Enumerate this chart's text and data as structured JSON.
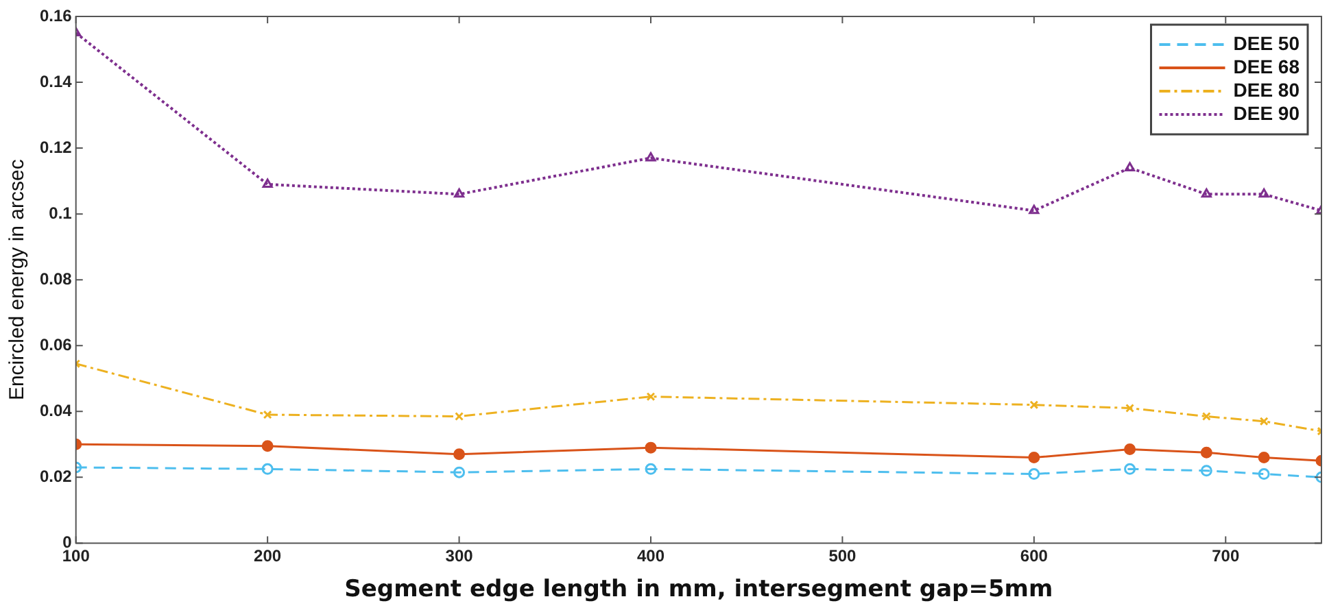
{
  "chart_data": {
    "type": "line",
    "xlabel": "Segment edge length in mm, intersegment gap=5mm",
    "ylabel": "Encircled energy in arcsec",
    "x": [
      100,
      200,
      300,
      400,
      600,
      650,
      690,
      720,
      750
    ],
    "xlim": [
      100,
      750
    ],
    "xticks": [
      100,
      200,
      300,
      400,
      500,
      600,
      700
    ],
    "ylim": [
      0,
      0.16
    ],
    "yticks": [
      0,
      0.02,
      0.04,
      0.06,
      0.08,
      0.1,
      0.12,
      0.14,
      0.16
    ],
    "grid": false,
    "legend": "top right",
    "series": [
      {
        "name": "DEE 50",
        "color": "#4dbeee",
        "marker": "circle",
        "line_style": "dashed",
        "values": [
          0.023,
          0.0225,
          0.0215,
          0.0225,
          0.021,
          0.0225,
          0.022,
          0.021,
          0.02
        ]
      },
      {
        "name": "DEE 68",
        "color": "#d95319",
        "marker": "circle",
        "line_style": "solid",
        "values": [
          0.03,
          0.0295,
          0.027,
          0.029,
          0.026,
          0.0285,
          0.0275,
          0.026,
          0.025
        ]
      },
      {
        "name": "DEE 80",
        "color": "#edb120",
        "marker": "cross",
        "line_style": "dashdot",
        "values": [
          0.0545,
          0.039,
          0.0385,
          0.0445,
          0.042,
          0.041,
          0.0385,
          0.037,
          0.034
        ]
      },
      {
        "name": "DEE 90",
        "color": "#7e2f8e",
        "marker": "triangle",
        "line_style": "dotted",
        "values": [
          0.155,
          0.109,
          0.106,
          0.117,
          0.101,
          0.114,
          0.106,
          0.106,
          0.101
        ]
      }
    ]
  }
}
